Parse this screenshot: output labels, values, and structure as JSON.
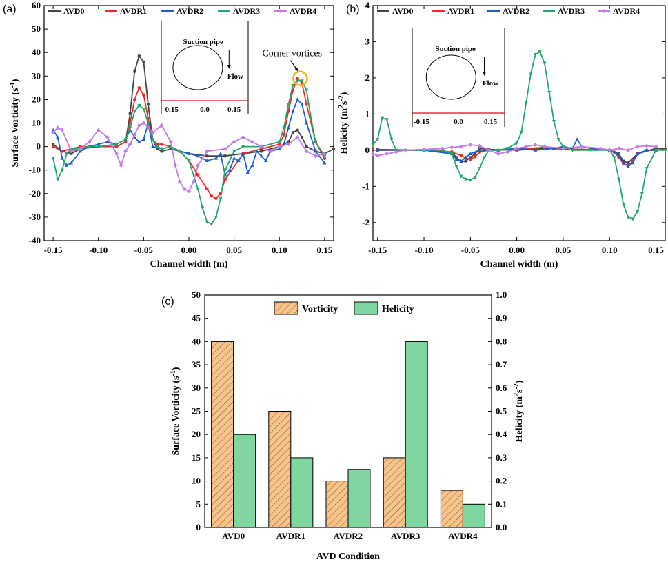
{
  "colors": {
    "AVD0": "#444444",
    "AVDR1": "#ee2a2a",
    "AVDR2": "#1a5fd0",
    "AVDR3": "#1fa868",
    "AVDR4": "#c27ae6",
    "vorticity_bar": "#f7c48c",
    "vorticity_hatch": "#8a5a2a",
    "helicity_bar": "#7fd6a0",
    "circle_highlight": "#f5b20f",
    "inset_line": "#d01010"
  },
  "chart_data": [
    {
      "id": "a",
      "type": "line",
      "panel_label": "(a)",
      "xlabel": "Channel width (m)",
      "ylabel": "Surface Vorticity (s",
      "ylabel_sup": "-1",
      "ylabel_end": ")",
      "xlim": [
        -0.16,
        0.16
      ],
      "ylim": [
        -40,
        60
      ],
      "xticks": [
        -0.15,
        -0.1,
        -0.05,
        0.0,
        0.05,
        0.1,
        0.15
      ],
      "xtick_labels": [
        "-0.15",
        "-0.10",
        "-0.05",
        "0.00",
        "0.05",
        "0.10",
        "0.15"
      ],
      "yticks": [
        -40,
        -30,
        -20,
        -10,
        0,
        10,
        20,
        30,
        40,
        50,
        60
      ],
      "ytick_labels": [
        "-40",
        "-30",
        "-20",
        "-10",
        "0",
        "10",
        "20",
        "30",
        "40",
        "50",
        "60"
      ],
      "legend": [
        "AVD0",
        "AVDR1",
        "AVDR2",
        "AVDR3",
        "AVDR4"
      ],
      "annotation": "Corner vortices",
      "inset": {
        "title": "Suction pipe",
        "flow": "Flow",
        "ticks": [
          "-0.15",
          "0.0",
          "0.15"
        ]
      },
      "series": [
        {
          "name": "AVD0",
          "x": [
            -0.15,
            -0.14,
            -0.13,
            -0.12,
            -0.1,
            -0.08,
            -0.07,
            -0.065,
            -0.06,
            -0.055,
            -0.05,
            -0.045,
            -0.04,
            -0.035,
            -0.03,
            -0.02,
            0.0,
            0.02,
            0.04,
            0.06,
            0.08,
            0.1,
            0.11,
            0.115,
            0.12,
            0.125,
            0.13,
            0.14,
            0.15,
            0.16
          ],
          "y": [
            1,
            -2,
            -3,
            -1,
            0,
            0,
            2,
            14,
            32,
            38.5,
            36,
            18,
            3,
            -1,
            -2,
            -1,
            -3,
            -4,
            -4,
            -3,
            -2,
            0,
            2,
            6,
            7,
            4,
            0,
            -2,
            -3,
            -1
          ]
        },
        {
          "name": "AVDR1",
          "x": [
            -0.15,
            -0.14,
            -0.13,
            -0.12,
            -0.1,
            -0.08,
            -0.07,
            -0.065,
            -0.06,
            -0.055,
            -0.05,
            -0.045,
            -0.04,
            -0.035,
            -0.03,
            -0.02,
            -0.01,
            0.0,
            0.01,
            0.02,
            0.025,
            0.03,
            0.035,
            0.04,
            0.06,
            0.08,
            0.1,
            0.105,
            0.11,
            0.115,
            0.12,
            0.125,
            0.13,
            0.14,
            0.15
          ],
          "y": [
            0,
            -2,
            -1,
            0,
            0,
            0,
            2,
            10,
            20,
            25,
            22,
            12,
            3,
            1,
            1,
            0,
            -2,
            -6,
            -12,
            -18,
            -21,
            -22,
            -20,
            -14,
            -3,
            -1,
            1,
            5,
            15,
            24,
            29,
            27,
            18,
            2,
            -5
          ]
        },
        {
          "name": "AVDR2",
          "x": [
            -0.15,
            -0.145,
            -0.14,
            -0.135,
            -0.13,
            -0.12,
            -0.11,
            -0.1,
            -0.09,
            -0.08,
            -0.07,
            -0.065,
            -0.06,
            -0.055,
            -0.05,
            -0.045,
            -0.04,
            -0.03,
            -0.02,
            -0.01,
            0.0,
            0.01,
            0.02,
            0.03,
            0.035,
            0.04,
            0.045,
            0.05,
            0.055,
            0.06,
            0.065,
            0.07,
            0.075,
            0.08,
            0.085,
            0.09,
            0.1,
            0.105,
            0.11,
            0.115,
            0.12,
            0.125,
            0.13,
            0.14,
            0.15
          ],
          "y": [
            7,
            4,
            -5,
            -8,
            -7,
            -2,
            0,
            1,
            2,
            1,
            3,
            7,
            4,
            2,
            3,
            10,
            0,
            -1,
            0,
            -2,
            -3,
            -4,
            -6,
            -5,
            -3,
            -12,
            -10,
            -5,
            -6,
            -3,
            -11,
            -8,
            -2,
            -4,
            -6,
            -2,
            -1,
            1,
            8,
            15,
            20,
            18,
            10,
            -2,
            -7
          ]
        },
        {
          "name": "AVDR3",
          "x": [
            -0.15,
            -0.145,
            -0.14,
            -0.135,
            -0.13,
            -0.12,
            -0.11,
            -0.1,
            -0.08,
            -0.07,
            -0.065,
            -0.06,
            -0.055,
            -0.05,
            -0.045,
            -0.04,
            -0.035,
            -0.03,
            -0.02,
            -0.01,
            0.0,
            0.01,
            0.015,
            0.02,
            0.025,
            0.03,
            0.035,
            0.04,
            0.05,
            0.06,
            0.08,
            0.1,
            0.105,
            0.11,
            0.115,
            0.12,
            0.125,
            0.13,
            0.135,
            0.14,
            0.15
          ],
          "y": [
            -5,
            -14,
            -10,
            -3,
            -1,
            -1,
            0,
            0,
            1,
            3,
            8,
            15,
            17.5,
            16,
            10,
            3,
            0,
            -1,
            0,
            -2,
            -6,
            -18,
            -26,
            -32,
            -33,
            -30,
            -22,
            -10,
            -2,
            0,
            0,
            2,
            8,
            18,
            26,
            28,
            28,
            24,
            12,
            2,
            -4
          ]
        },
        {
          "name": "AVDR4",
          "x": [
            -0.15,
            -0.145,
            -0.14,
            -0.13,
            -0.12,
            -0.11,
            -0.1,
            -0.09,
            -0.08,
            -0.075,
            -0.07,
            -0.065,
            -0.06,
            -0.055,
            -0.05,
            -0.045,
            -0.04,
            -0.03,
            -0.02,
            -0.015,
            -0.01,
            -0.005,
            0.0,
            0.005,
            0.01,
            0.02,
            0.04,
            0.05,
            0.06,
            0.07,
            0.08,
            0.09,
            0.1,
            0.11,
            0.12,
            0.13,
            0.14,
            0.15
          ],
          "y": [
            6,
            8,
            7,
            -2,
            -1,
            2,
            7,
            4,
            -3,
            -8,
            -2,
            1,
            5,
            9,
            10,
            8,
            6,
            9,
            2,
            -8,
            -15,
            -18,
            -19,
            -15,
            -8,
            -2,
            -1,
            2,
            4,
            2,
            0,
            -2,
            0,
            1,
            4,
            -2,
            -4,
            -3
          ]
        }
      ]
    },
    {
      "id": "b",
      "type": "line",
      "panel_label": "(b)",
      "xlabel": "Channel width (m)",
      "ylabel": "Helicity (m",
      "ylabel_sup": "2",
      "ylabel_mid": "s",
      "ylabel_sup2": "-2",
      "ylabel_end": ")",
      "xlim": [
        -0.155,
        0.16
      ],
      "ylim": [
        -2.5,
        4
      ],
      "xticks": [
        -0.15,
        -0.1,
        -0.05,
        0.0,
        0.05,
        0.1,
        0.15
      ],
      "xtick_labels": [
        "-0.15",
        "-0.10",
        "-0.05",
        "0.00",
        "0.05",
        "0.10",
        "0.15"
      ],
      "yticks": [
        -2,
        -1,
        0,
        1,
        2,
        3,
        4
      ],
      "ytick_labels": [
        "-2",
        "-1",
        "0",
        "1",
        "2",
        "3",
        "4"
      ],
      "legend": [
        "AVD0",
        "AVDR1",
        "AVDR2",
        "AVDR3",
        "AVDR4"
      ],
      "inset": {
        "title": "Suction pipe",
        "flow": "Flow",
        "ticks": [
          "-0.15",
          "0.0",
          "0.15"
        ]
      },
      "series": [
        {
          "name": "AVD0",
          "x": [
            -0.15,
            -0.1,
            -0.07,
            -0.065,
            -0.06,
            -0.055,
            -0.05,
            -0.045,
            -0.04,
            -0.03,
            0.0,
            0.03,
            0.06,
            0.1,
            0.11,
            0.115,
            0.12,
            0.13,
            0.15,
            0.16
          ],
          "y": [
            0.02,
            0.0,
            -0.05,
            -0.2,
            -0.32,
            -0.3,
            -0.2,
            -0.1,
            0.05,
            0.02,
            0.0,
            0.05,
            0.03,
            0.0,
            -0.1,
            -0.3,
            -0.35,
            -0.1,
            0.05,
            0.03
          ]
        },
        {
          "name": "AVDR1",
          "x": [
            -0.15,
            -0.1,
            -0.07,
            -0.06,
            -0.055,
            -0.05,
            -0.045,
            -0.04,
            -0.03,
            0.0,
            0.03,
            0.06,
            0.1,
            0.105,
            0.11,
            0.115,
            0.12,
            0.125,
            0.13,
            0.14,
            0.15
          ],
          "y": [
            0.0,
            0.0,
            -0.05,
            -0.15,
            -0.22,
            -0.25,
            -0.18,
            -0.05,
            0.0,
            0.02,
            0.08,
            0.03,
            0.0,
            -0.05,
            -0.2,
            -0.38,
            -0.42,
            -0.3,
            -0.1,
            0.0,
            0.0
          ]
        },
        {
          "name": "AVDR2",
          "x": [
            -0.15,
            -0.1,
            -0.07,
            -0.065,
            -0.06,
            -0.055,
            -0.05,
            -0.04,
            -0.02,
            0.0,
            0.02,
            0.04,
            0.05,
            0.06,
            0.065,
            0.07,
            0.08,
            0.1,
            0.11,
            0.115,
            0.12,
            0.125,
            0.13,
            0.14,
            0.15
          ],
          "y": [
            0.0,
            0.0,
            -0.1,
            -0.25,
            -0.3,
            -0.2,
            -0.1,
            0.0,
            0.0,
            0.05,
            0.0,
            0.05,
            0.1,
            0.05,
            0.3,
            0.1,
            0.05,
            0.0,
            -0.15,
            -0.35,
            -0.45,
            -0.35,
            -0.1,
            0.0,
            0.0
          ]
        },
        {
          "name": "AVDR3",
          "x": [
            -0.155,
            -0.15,
            -0.145,
            -0.14,
            -0.135,
            -0.13,
            -0.12,
            -0.1,
            -0.08,
            -0.07,
            -0.065,
            -0.06,
            -0.055,
            -0.05,
            -0.045,
            -0.04,
            -0.035,
            -0.03,
            -0.02,
            -0.01,
            0.0,
            0.005,
            0.01,
            0.015,
            0.02,
            0.025,
            0.03,
            0.035,
            0.04,
            0.045,
            0.05,
            0.06,
            0.08,
            0.1,
            0.105,
            0.11,
            0.115,
            0.12,
            0.125,
            0.13,
            0.135,
            0.14,
            0.15,
            0.16
          ],
          "y": [
            0.15,
            0.3,
            0.9,
            0.85,
            0.3,
            0.0,
            0.0,
            0.0,
            0.0,
            -0.1,
            -0.45,
            -0.72,
            -0.8,
            -0.82,
            -0.75,
            -0.5,
            -0.2,
            0.0,
            0.0,
            0.05,
            0.2,
            0.5,
            1.3,
            2.1,
            2.65,
            2.72,
            2.4,
            1.6,
            0.8,
            0.3,
            0.1,
            0.0,
            0.0,
            0.0,
            -0.2,
            -0.8,
            -1.5,
            -1.85,
            -1.9,
            -1.7,
            -1.2,
            -0.5,
            0.0,
            0.0
          ]
        },
        {
          "name": "AVDR4",
          "x": [
            -0.155,
            -0.15,
            -0.14,
            -0.13,
            -0.12,
            -0.1,
            -0.08,
            -0.07,
            -0.06,
            -0.05,
            -0.04,
            -0.03,
            -0.02,
            -0.01,
            0.0,
            0.01,
            0.02,
            0.03,
            0.05,
            0.07,
            0.09,
            0.1,
            0.11,
            0.12,
            0.13,
            0.14,
            0.15
          ],
          "y": [
            -0.1,
            -0.15,
            -0.1,
            -0.05,
            0.0,
            0.02,
            0.05,
            0.08,
            0.1,
            0.15,
            0.12,
            0.0,
            -0.1,
            -0.05,
            0.05,
            0.1,
            0.15,
            0.1,
            0.05,
            0.1,
            0.05,
            0.0,
            0.05,
            0.0,
            0.1,
            0.12,
            0.1
          ]
        }
      ]
    },
    {
      "id": "c",
      "type": "bar",
      "panel_label": "(c)",
      "xlabel": "AVD Condition",
      "ylabel_left": "Surface Vorticity (s",
      "ylabel_left_sup": "-1",
      "ylabel_left_end": ")",
      "ylabel_right": "Helicity (m",
      "ylabel_right_sup": "2",
      "ylabel_right_mid": "s",
      "ylabel_right_sup2": "-2",
      "ylabel_right_end": ")",
      "categories": [
        "AVD0",
        "AVDR1",
        "AVDR2",
        "AVDR3",
        "AVDR4"
      ],
      "ylim_left": [
        0,
        50
      ],
      "ylim_right": [
        0.0,
        1.0
      ],
      "yticks_left": [
        0,
        5,
        10,
        15,
        20,
        25,
        30,
        35,
        40,
        45,
        50
      ],
      "ytick_labels_left": [
        "0",
        "5",
        "10",
        "15",
        "20",
        "25",
        "30",
        "35",
        "40",
        "45",
        "50"
      ],
      "yticks_right": [
        0.0,
        0.1,
        0.2,
        0.3,
        0.4,
        0.5,
        0.6,
        0.7,
        0.8,
        0.9,
        1.0
      ],
      "ytick_labels_right": [
        "0.0",
        "0.1",
        "0.2",
        "0.3",
        "0.4",
        "0.5",
        "0.6",
        "0.7",
        "0.8",
        "0.9",
        "1.0"
      ],
      "legend": [
        "Vorticity",
        "Helicity"
      ],
      "series": [
        {
          "name": "Vorticity",
          "axis": "left",
          "values": [
            40,
            25,
            10,
            15,
            8
          ]
        },
        {
          "name": "Helicity",
          "axis": "right",
          "values": [
            0.4,
            0.3,
            0.25,
            0.8,
            0.1
          ]
        }
      ]
    }
  ]
}
